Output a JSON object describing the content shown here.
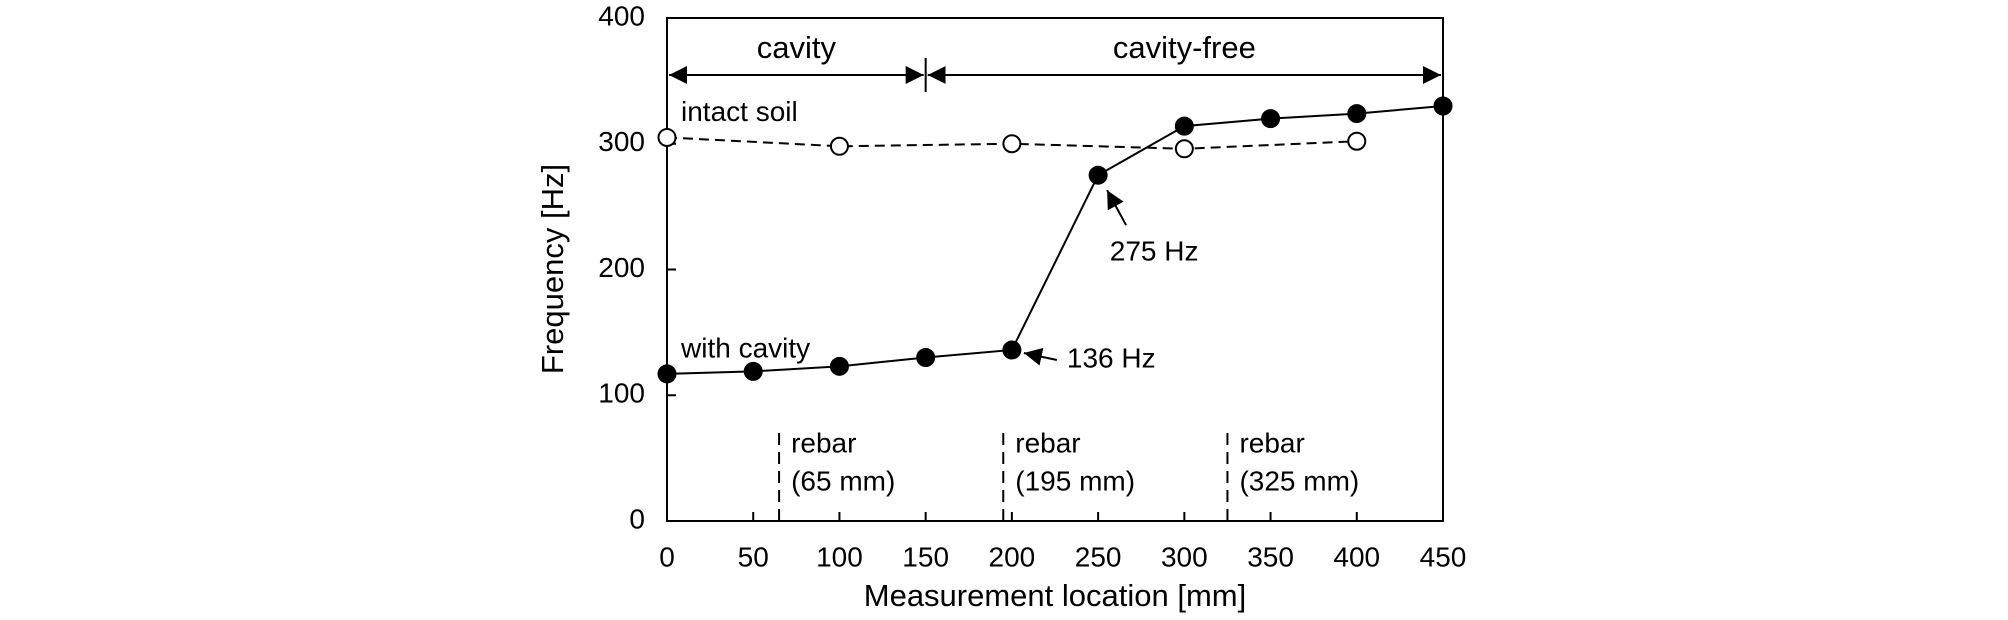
{
  "chart_data": {
    "type": "line",
    "x_label": "Measurement location [mm]",
    "y_label": "Frequency [Hz]",
    "xlim": [
      0,
      450
    ],
    "xticks": [
      0,
      50,
      100,
      150,
      200,
      250,
      300,
      350,
      400,
      450
    ],
    "ylim": [
      0,
      400
    ],
    "yticks": [
      0,
      100,
      200,
      300,
      400
    ],
    "grid": false,
    "series": [
      {
        "name": "intact soil",
        "color": "#000000",
        "marker": "open",
        "dashed": true,
        "x": [
          0,
          100,
          200,
          300,
          400
        ],
        "values": [
          305,
          298,
          300,
          296,
          302
        ]
      },
      {
        "name": "with cavity",
        "color": "#000000",
        "marker": "filled",
        "dashed": false,
        "x": [
          0,
          50,
          100,
          150,
          200,
          250,
          300,
          350,
          400,
          450
        ],
        "values": [
          117,
          119,
          123,
          130,
          136,
          275,
          314,
          320,
          324,
          330
        ]
      }
    ],
    "regions": [
      {
        "label": "cavity",
        "start": 0,
        "end": 150
      },
      {
        "label": "cavity-free",
        "start": 150,
        "end": 450
      }
    ],
    "rebars": [
      {
        "x": 65,
        "lines": [
          "rebar",
          "(65 mm)"
        ]
      },
      {
        "x": 195,
        "lines": [
          "rebar",
          "(195 mm)"
        ]
      },
      {
        "x": 325,
        "lines": [
          "rebar",
          "(325 mm)"
        ]
      }
    ],
    "annotations": [
      {
        "text": "136 Hz",
        "x": 200,
        "y": 136
      },
      {
        "text": "275 Hz",
        "x": 250,
        "y": 275
      }
    ]
  }
}
